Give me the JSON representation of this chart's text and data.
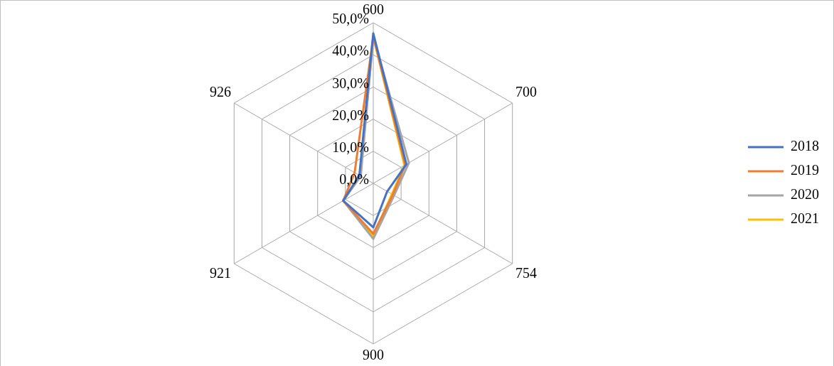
{
  "chart_data": {
    "type": "radar",
    "categories": [
      "600",
      "700",
      "754",
      "900",
      "921",
      "926"
    ],
    "series": [
      {
        "name": "2018",
        "color": "#4472c4",
        "values": [
          46.7,
          11.9,
          5.0,
          13.7,
          10.8,
          5.0
        ]
      },
      {
        "name": "2019",
        "color": "#ed7d31",
        "values": [
          45.7,
          11.5,
          7.0,
          15.7,
          10.8,
          6.7
        ]
      },
      {
        "name": "2020",
        "color": "#a5a5a5",
        "values": [
          45.7,
          12.8,
          7.5,
          17.3,
          10.8,
          4.5
        ]
      },
      {
        "name": "2021",
        "color": "#ffc000",
        "values": [
          45.7,
          11.2,
          6.7,
          16.5,
          10.8,
          4.6
        ]
      }
    ],
    "ylim": [
      0,
      50
    ],
    "yticks": [
      {
        "value": 0,
        "label": "0,0%"
      },
      {
        "value": 10,
        "label": "10,0%"
      },
      {
        "value": 20,
        "label": "20,0%"
      },
      {
        "value": 30,
        "label": "30,0%"
      },
      {
        "value": 40,
        "label": "40,0%"
      },
      {
        "value": 50,
        "label": "50,0%"
      }
    ],
    "grid": true,
    "legend": "right",
    "marker": "none"
  }
}
